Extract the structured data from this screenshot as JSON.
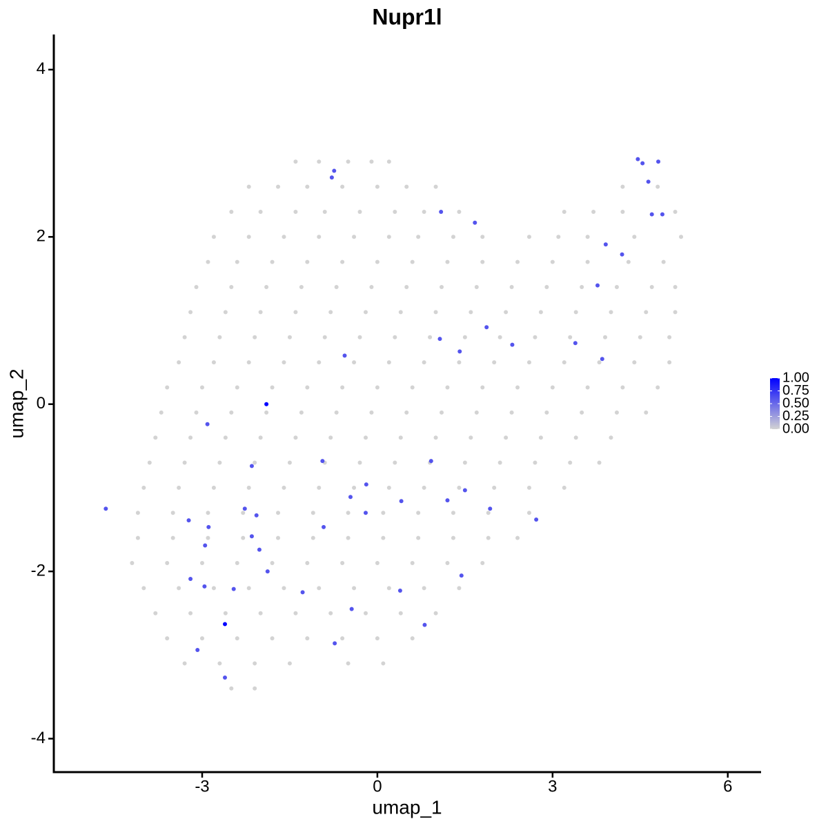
{
  "chart_data": {
    "type": "scatter",
    "title": "Nupr1l",
    "x_label": "umap_1",
    "y_label": "umap_2",
    "xlim": [
      -5.54,
      6.57
    ],
    "ylim": [
      -4.4,
      4.42
    ],
    "xticks": [
      -3,
      0,
      3,
      6
    ],
    "yticks": [
      -4,
      -2,
      0,
      2,
      4
    ],
    "grid": false,
    "color_range": [
      "#D3D3D3",
      "#0000FF"
    ],
    "clim": [
      0,
      1
    ],
    "cticks": [
      {
        "value": 0,
        "label": "0.00"
      },
      {
        "value": 0.25,
        "label": "0.25"
      },
      {
        "value": 0.5,
        "label": "0.50"
      },
      {
        "value": 0.75,
        "label": "0.75"
      },
      {
        "value": 1,
        "label": "1.00"
      }
    ],
    "x": [
      -1.4,
      -1.0,
      -0.5,
      -0.1,
      0.2,
      -2.2,
      -1.7,
      -1.2,
      -0.6,
      0,
      0.5,
      1.0,
      4.2,
      4.8,
      -2.5,
      -2.0,
      -1.4,
      -0.9,
      -0.3,
      0.3,
      0.8,
      1.4,
      3.2,
      3.7,
      4.2,
      5.1,
      -2.8,
      -2.2,
      -1.6,
      -1.0,
      -0.4,
      0.2,
      0.7,
      1.3,
      1.8,
      2.6,
      3.1,
      3.6,
      4.4,
      5.2,
      -2.9,
      -2.4,
      -1.8,
      -1.2,
      -0.6,
      0,
      0.6,
      1.2,
      1.8,
      2.4,
      3.0,
      3.6,
      4.3,
      4.9,
      -3.1,
      -2.5,
      -1.9,
      -1.3,
      -0.7,
      -0.1,
      0.5,
      1.1,
      1.7,
      2.3,
      2.9,
      3.5,
      4.1,
      4.7,
      5.1,
      -3.2,
      -2.6,
      -2.0,
      -1.4,
      -0.8,
      -0.2,
      0.4,
      1.0,
      1.6,
      2.2,
      2.8,
      3.4,
      4.0,
      4.6,
      5.1,
      -3.3,
      -2.7,
      -2.1,
      -1.5,
      -0.9,
      -0.3,
      0.3,
      0.9,
      1.5,
      2.1,
      2.7,
      3.3,
      3.9,
      4.5,
      5.0,
      -3.4,
      -2.8,
      -2.2,
      -1.6,
      -1.0,
      -0.4,
      0.2,
      0.8,
      1.4,
      2.0,
      2.6,
      3.2,
      3.8,
      4.4,
      5.0,
      -3.6,
      -3.0,
      -2.4,
      -1.8,
      -1.2,
      -0.6,
      0,
      0.6,
      1.2,
      1.8,
      2.4,
      3.0,
      3.6,
      4.2,
      4.8,
      -3.7,
      -3.1,
      -2.5,
      -1.9,
      -1.3,
      -0.7,
      -0.1,
      0.5,
      1.1,
      1.7,
      2.3,
      2.9,
      3.5,
      4.1,
      4.6,
      -3.8,
      -3.2,
      -2.6,
      -2.0,
      -1.4,
      -0.8,
      -0.2,
      0.4,
      1.0,
      1.6,
      2.2,
      2.8,
      3.4,
      4.0,
      -3.9,
      -3.3,
      -2.7,
      -2.1,
      -1.5,
      -0.9,
      -0.3,
      0.3,
      0.9,
      1.5,
      2.1,
      2.7,
      3.3,
      3.8,
      -4.0,
      -3.4,
      -2.8,
      -2.2,
      -1.6,
      -1.0,
      -0.4,
      0.2,
      0.8,
      1.4,
      2.0,
      2.6,
      3.2,
      -4.1,
      -3.5,
      -2.9,
      -2.3,
      -1.7,
      -1.1,
      -0.5,
      0.1,
      0.7,
      1.3,
      1.9,
      2.6,
      -4.1,
      -3.5,
      -2.9,
      -2.3,
      -1.7,
      -1.1,
      -0.5,
      0.1,
      0.7,
      1.3,
      1.9,
      2.4,
      -4.2,
      -3.6,
      -3.0,
      -2.4,
      -1.8,
      -1.2,
      -0.6,
      0,
      0.6,
      1.2,
      1.8,
      -4.0,
      -3.4,
      -2.8,
      -2.2,
      -1.6,
      -1.0,
      -0.4,
      0.2,
      0.8,
      1.4,
      -3.8,
      -3.2,
      -2.6,
      -2.0,
      -1.4,
      -0.8,
      -0.2,
      0.4,
      1.0,
      -3.6,
      -3.0,
      -2.4,
      -1.8,
      -1.2,
      -0.6,
      0,
      0.6,
      -3.3,
      -2.7,
      -2.1,
      -1.5,
      -0.5,
      0.1,
      -2.5,
      -2.1,
      -4.65,
      -2.91,
      -1.9,
      -2.61,
      -0.74,
      -0.78,
      1.09,
      1.67,
      4.46,
      4.54,
      4.81,
      4.64,
      4.7,
      4.88,
      3.91,
      4.19,
      3.77,
      1.07,
      1.87,
      2.31,
      1.41,
      -0.56,
      3.39,
      3.85,
      -2.15,
      -0.94,
      0.92,
      -0.19,
      -0.46,
      0.41,
      1.2,
      1.5,
      -0.2,
      -2.27,
      -2.07,
      1.93,
      2.72,
      -3.23,
      -2.89,
      -0.92,
      -2.15,
      -2.95,
      -2.02,
      -1.88,
      -3.2,
      -2.96,
      -2.46,
      -1.28,
      0.39,
      1.44,
      -0.44,
      0.81,
      -0.73,
      -3.08,
      -2.61
    ],
    "y": [
      2.9,
      2.9,
      2.9,
      2.9,
      2.9,
      2.6,
      2.6,
      2.6,
      2.6,
      2.6,
      2.6,
      2.6,
      2.6,
      2.6,
      2.3,
      2.3,
      2.3,
      2.3,
      2.3,
      2.3,
      2.3,
      2.3,
      2.3,
      2.3,
      2.3,
      2.3,
      2.0,
      2.0,
      2.0,
      2.0,
      2.0,
      2.0,
      2.0,
      2.0,
      2.0,
      2.0,
      2.0,
      2.0,
      2.0,
      2.0,
      1.7,
      1.7,
      1.7,
      1.7,
      1.7,
      1.7,
      1.7,
      1.7,
      1.7,
      1.7,
      1.7,
      1.7,
      1.7,
      1.7,
      1.4,
      1.4,
      1.4,
      1.4,
      1.4,
      1.4,
      1.4,
      1.4,
      1.4,
      1.4,
      1.4,
      1.4,
      1.4,
      1.4,
      1.4,
      1.1,
      1.1,
      1.1,
      1.1,
      1.1,
      1.1,
      1.1,
      1.1,
      1.1,
      1.1,
      1.1,
      1.1,
      1.1,
      1.1,
      1.1,
      0.8,
      0.8,
      0.8,
      0.8,
      0.8,
      0.8,
      0.8,
      0.8,
      0.8,
      0.8,
      0.8,
      0.8,
      0.8,
      0.8,
      0.8,
      0.5,
      0.5,
      0.5,
      0.5,
      0.5,
      0.5,
      0.5,
      0.5,
      0.5,
      0.5,
      0.5,
      0.5,
      0.5,
      0.5,
      0.5,
      0.2,
      0.2,
      0.2,
      0.2,
      0.2,
      0.2,
      0.2,
      0.2,
      0.2,
      0.2,
      0.2,
      0.2,
      0.2,
      0.2,
      0.2,
      -0.1,
      -0.1,
      -0.1,
      -0.1,
      -0.1,
      -0.1,
      -0.1,
      -0.1,
      -0.1,
      -0.1,
      -0.1,
      -0.1,
      -0.1,
      -0.1,
      -0.1,
      -0.4,
      -0.4,
      -0.4,
      -0.4,
      -0.4,
      -0.4,
      -0.4,
      -0.4,
      -0.4,
      -0.4,
      -0.4,
      -0.4,
      -0.4,
      -0.4,
      -0.7,
      -0.7,
      -0.7,
      -0.7,
      -0.7,
      -0.7,
      -0.7,
      -0.7,
      -0.7,
      -0.7,
      -0.7,
      -0.7,
      -0.7,
      -0.7,
      -1.0,
      -1.0,
      -1.0,
      -1.0,
      -1.0,
      -1.0,
      -1.0,
      -1.0,
      -1.0,
      -1.0,
      -1.0,
      -1.0,
      -1.0,
      -1.3,
      -1.3,
      -1.3,
      -1.3,
      -1.3,
      -1.3,
      -1.3,
      -1.3,
      -1.3,
      -1.3,
      -1.3,
      -1.3,
      -1.6,
      -1.6,
      -1.6,
      -1.6,
      -1.6,
      -1.6,
      -1.6,
      -1.6,
      -1.6,
      -1.6,
      -1.6,
      -1.6,
      -1.9,
      -1.9,
      -1.9,
      -1.9,
      -1.9,
      -1.9,
      -1.9,
      -1.9,
      -1.9,
      -1.9,
      -1.9,
      -2.2,
      -2.2,
      -2.2,
      -2.2,
      -2.2,
      -2.2,
      -2.2,
      -2.2,
      -2.2,
      -2.2,
      -2.5,
      -2.5,
      -2.5,
      -2.5,
      -2.5,
      -2.5,
      -2.5,
      -2.5,
      -2.5,
      -2.8,
      -2.8,
      -2.8,
      -2.8,
      -2.8,
      -2.8,
      -2.8,
      -2.8,
      -3.1,
      -3.1,
      -3.1,
      -3.1,
      -3.1,
      -3.1,
      -3.4,
      -3.4,
      -1.25,
      -0.24,
      0.0,
      -2.63,
      2.79,
      2.71,
      2.3,
      2.17,
      2.93,
      2.88,
      2.9,
      2.66,
      2.27,
      2.27,
      1.91,
      1.79,
      1.42,
      0.78,
      0.92,
      0.71,
      0.63,
      0.58,
      0.73,
      0.54,
      -0.74,
      -0.68,
      -0.68,
      -0.96,
      -1.11,
      -1.16,
      -1.15,
      -1.03,
      -1.3,
      -1.25,
      -1.33,
      -1.25,
      -1.38,
      -1.39,
      -1.47,
      -1.47,
      -1.58,
      -1.69,
      -1.74,
      -2.0,
      -2.09,
      -2.18,
      -2.21,
      -2.25,
      -2.23,
      -2.05,
      -2.45,
      -2.64,
      -2.86,
      -2.94,
      -3.27
    ],
    "expression": [
      0,
      0,
      0,
      0,
      0,
      0,
      0,
      0,
      0,
      0,
      0,
      0,
      0,
      0,
      0,
      0,
      0,
      0,
      0,
      0,
      0,
      0,
      0,
      0,
      0,
      0,
      0,
      0,
      0,
      0,
      0,
      0,
      0,
      0,
      0,
      0,
      0,
      0,
      0,
      0,
      0,
      0,
      0,
      0,
      0,
      0,
      0,
      0,
      0,
      0,
      0,
      0,
      0,
      0,
      0,
      0,
      0,
      0,
      0,
      0,
      0,
      0,
      0,
      0,
      0,
      0,
      0,
      0,
      0,
      0,
      0,
      0,
      0,
      0,
      0,
      0,
      0,
      0,
      0,
      0,
      0,
      0,
      0,
      0,
      0,
      0,
      0,
      0,
      0,
      0,
      0,
      0,
      0,
      0,
      0,
      0,
      0,
      0,
      0,
      0,
      0,
      0,
      0,
      0,
      0,
      0,
      0,
      0,
      0,
      0,
      0,
      0,
      0,
      0,
      0,
      0,
      0,
      0,
      0,
      0,
      0,
      0,
      0,
      0,
      0,
      0,
      0,
      0,
      0,
      0,
      0,
      0,
      0,
      0,
      0,
      0,
      0,
      0,
      0,
      0,
      0,
      0,
      0,
      0,
      0,
      0,
      0,
      0,
      0,
      0,
      0,
      0,
      0,
      0,
      0,
      0,
      0,
      0,
      0,
      0,
      0,
      0,
      0,
      0,
      0,
      0,
      0,
      0,
      0,
      0,
      0,
      0,
      0,
      0,
      0,
      0,
      0,
      0,
      0,
      0,
      0,
      0,
      0,
      0,
      0,
      0,
      0,
      0,
      0,
      0,
      0,
      0,
      0,
      0,
      0,
      0,
      0,
      0,
      0,
      0,
      0,
      0,
      0,
      0,
      0,
      0,
      0,
      0,
      0,
      0,
      0,
      0,
      0,
      0,
      0,
      0,
      0,
      0,
      0,
      0,
      0,
      0,
      0,
      0,
      0,
      0,
      0,
      0,
      0,
      0,
      0,
      0,
      0,
      0,
      0,
      0,
      0,
      0,
      0,
      0,
      0,
      0,
      0,
      0,
      0,
      0,
      0,
      0,
      0,
      0,
      0,
      0,
      0,
      0,
      0,
      0.6,
      0.6,
      1,
      1,
      0.6,
      0.6,
      0.6,
      0.6,
      0.6,
      0.6,
      0.6,
      0.6,
      0.6,
      0.6,
      0.6,
      0.6,
      0.6,
      0.6,
      0.6,
      0.6,
      0.6,
      0.6,
      0.6,
      0.6,
      0.6,
      0.6,
      0.6,
      0.6,
      0.6,
      0.6,
      0.6,
      0.6,
      0.6,
      0.6,
      0.6,
      0.6,
      0.6,
      0.6,
      0.6,
      0.6,
      0.6,
      0.6,
      0.6,
      0.6,
      0.6,
      0.6,
      0.6,
      0.6,
      0.6,
      0.6,
      0.6,
      0.6,
      0.6,
      0.6,
      0.6
    ]
  }
}
